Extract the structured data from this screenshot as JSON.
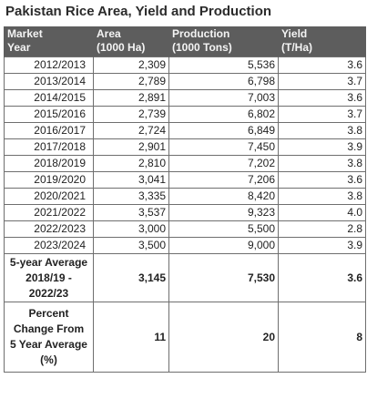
{
  "title": "Pakistan Rice Area, Yield and Production",
  "headers": [
    {
      "line1": "Market",
      "line2": "Year"
    },
    {
      "line1": "Area",
      "line2": "(1000 Ha)"
    },
    {
      "line1": "Production",
      "line2": "(1000 Tons)"
    },
    {
      "line1": "Yield",
      "line2": "(T/Ha)"
    }
  ],
  "rows": [
    {
      "year": "2012/2013",
      "area": "2,309",
      "production": "5,536",
      "yield": "3.6"
    },
    {
      "year": "2013/2014",
      "area": "2,789",
      "production": "6,798",
      "yield": "3.7"
    },
    {
      "year": "2014/2015",
      "area": "2,891",
      "production": "7,003",
      "yield": "3.6"
    },
    {
      "year": "2015/2016",
      "area": "2,739",
      "production": "6,802",
      "yield": "3.7"
    },
    {
      "year": "2016/2017",
      "area": "2,724",
      "production": "6,849",
      "yield": "3.8"
    },
    {
      "year": "2017/2018",
      "area": "2,901",
      "production": "7,450",
      "yield": "3.9"
    },
    {
      "year": "2018/2019",
      "area": "2,810",
      "production": "7,202",
      "yield": "3.8"
    },
    {
      "year": "2019/2020",
      "area": "3,041",
      "production": "7,206",
      "yield": "3.6"
    },
    {
      "year": "2020/2021",
      "area": "3,335",
      "production": "8,420",
      "yield": "3.8"
    },
    {
      "year": "2021/2022",
      "area": "3,537",
      "production": "9,323",
      "yield": "4.0"
    },
    {
      "year": "2022/2023",
      "area": "3,000",
      "production": "5,500",
      "yield": "2.8"
    },
    {
      "year": "2023/2024",
      "area": "3,500",
      "production": "9,000",
      "yield": "3.9"
    }
  ],
  "average_row": {
    "label_lines": [
      "5-year Average",
      "2018/19 -",
      "2022/23"
    ],
    "area": "3,145",
    "production": "7,530",
    "yield": "3.6"
  },
  "percent_row": {
    "label_lines": [
      "Percent",
      "Change From",
      "5 Year Average",
      "(%)"
    ],
    "area": "11",
    "production": "20",
    "yield": "8"
  }
}
